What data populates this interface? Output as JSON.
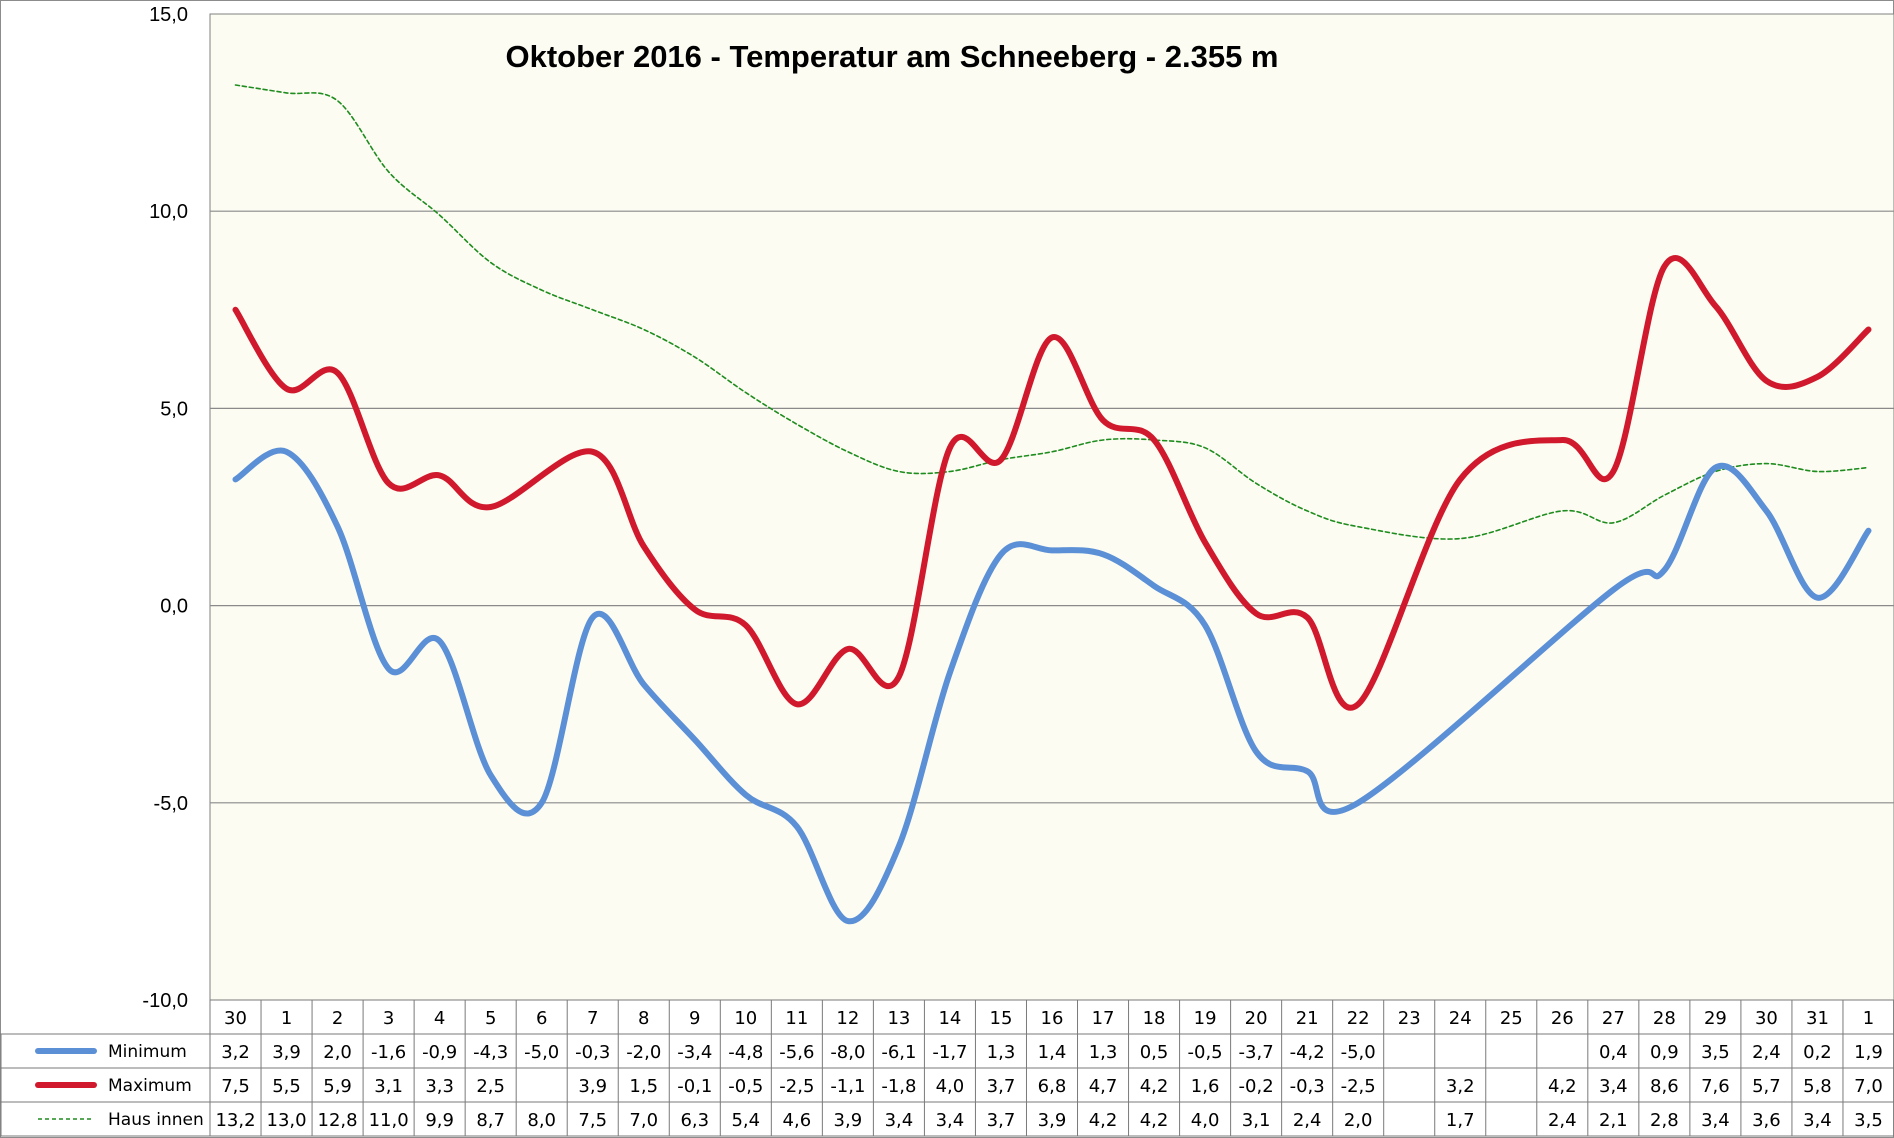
{
  "chart_data": {
    "type": "line",
    "title": "Oktober 2016 - Temperatur am Schneeberg - 2.355 m",
    "xlabel": "",
    "ylabel": "",
    "ylim": [
      -10,
      15
    ],
    "yticks": [
      "-10,0",
      "-5,0",
      "0,0",
      "5,0",
      "10,0",
      "15,0"
    ],
    "grid": true,
    "categories": [
      "30",
      "1",
      "2",
      "3",
      "4",
      "5",
      "6",
      "7",
      "8",
      "9",
      "10",
      "11",
      "12",
      "13",
      "14",
      "15",
      "16",
      "17",
      "18",
      "19",
      "20",
      "21",
      "22",
      "23",
      "24",
      "25",
      "26",
      "27",
      "28",
      "29",
      "30",
      "31",
      "1"
    ],
    "series": [
      {
        "name": "Minimum",
        "color": "#5b8fd6",
        "style": "solid",
        "values": [
          3.2,
          3.9,
          2.0,
          -1.6,
          -0.9,
          -4.3,
          -5.0,
          -0.3,
          -2.0,
          -3.4,
          -4.8,
          -5.6,
          -8.0,
          -6.1,
          -1.7,
          1.3,
          1.4,
          1.3,
          0.5,
          -0.5,
          -3.7,
          -4.2,
          -5.0,
          null,
          null,
          null,
          null,
          0.4,
          0.9,
          3.5,
          2.4,
          0.2,
          1.9
        ],
        "labels": [
          "3,2",
          "3,9",
          "2,0",
          "-1,6",
          "-0,9",
          "-4,3",
          "-5,0",
          "-0,3",
          "-2,0",
          "-3,4",
          "-4,8",
          "-5,6",
          "-8,0",
          "-6,1",
          "-1,7",
          "1,3",
          "1,4",
          "1,3",
          "0,5",
          "-0,5",
          "-3,7",
          "-4,2",
          "-5,0",
          "",
          "",
          "",
          "",
          "0,4",
          "0,9",
          "3,5",
          "2,4",
          "0,2",
          "1,9"
        ]
      },
      {
        "name": "Maximum",
        "color": "#d0192c",
        "style": "solid",
        "values": [
          7.5,
          5.5,
          5.9,
          3.1,
          3.3,
          2.5,
          null,
          3.9,
          1.5,
          -0.1,
          -0.5,
          -2.5,
          -1.1,
          -1.8,
          4.0,
          3.7,
          6.8,
          4.7,
          4.2,
          1.6,
          -0.2,
          -0.3,
          -2.5,
          null,
          3.2,
          null,
          4.2,
          3.4,
          8.6,
          7.6,
          5.7,
          5.8,
          7.0
        ],
        "labels": [
          "7,5",
          "5,5",
          "5,9",
          "3,1",
          "3,3",
          "2,5",
          "",
          "3,9",
          "1,5",
          "-0,1",
          "-0,5",
          "-2,5",
          "-1,1",
          "-1,8",
          "4,0",
          "3,7",
          "6,8",
          "4,7",
          "4,2",
          "1,6",
          "-0,2",
          "-0,3",
          "-2,5",
          "",
          "3,2",
          "",
          "4,2",
          "3,4",
          "8,6",
          "7,6",
          "5,7",
          "5,8",
          "7,0"
        ]
      },
      {
        "name": "Haus innen",
        "color": "#1e8c1e",
        "style": "dashed",
        "values": [
          13.2,
          13.0,
          12.8,
          11.0,
          9.9,
          8.7,
          8.0,
          7.5,
          7.0,
          6.3,
          5.4,
          4.6,
          3.9,
          3.4,
          3.4,
          3.7,
          3.9,
          4.2,
          4.2,
          4.0,
          3.1,
          2.4,
          2.0,
          null,
          1.7,
          null,
          2.4,
          2.1,
          2.8,
          3.4,
          3.6,
          3.4,
          3.5
        ],
        "labels": [
          "13,2",
          "13,0",
          "12,8",
          "11,0",
          "9,9",
          "8,7",
          "8,0",
          "7,5",
          "7,0",
          "6,3",
          "5,4",
          "4,6",
          "3,9",
          "3,4",
          "3,4",
          "3,7",
          "3,9",
          "4,2",
          "4,2",
          "4,0",
          "3,1",
          "2,4",
          "2,0",
          "",
          "1,7",
          "",
          "2,4",
          "2,1",
          "2,8",
          "3,4",
          "3,6",
          "3,4",
          "3,5"
        ]
      }
    ]
  }
}
